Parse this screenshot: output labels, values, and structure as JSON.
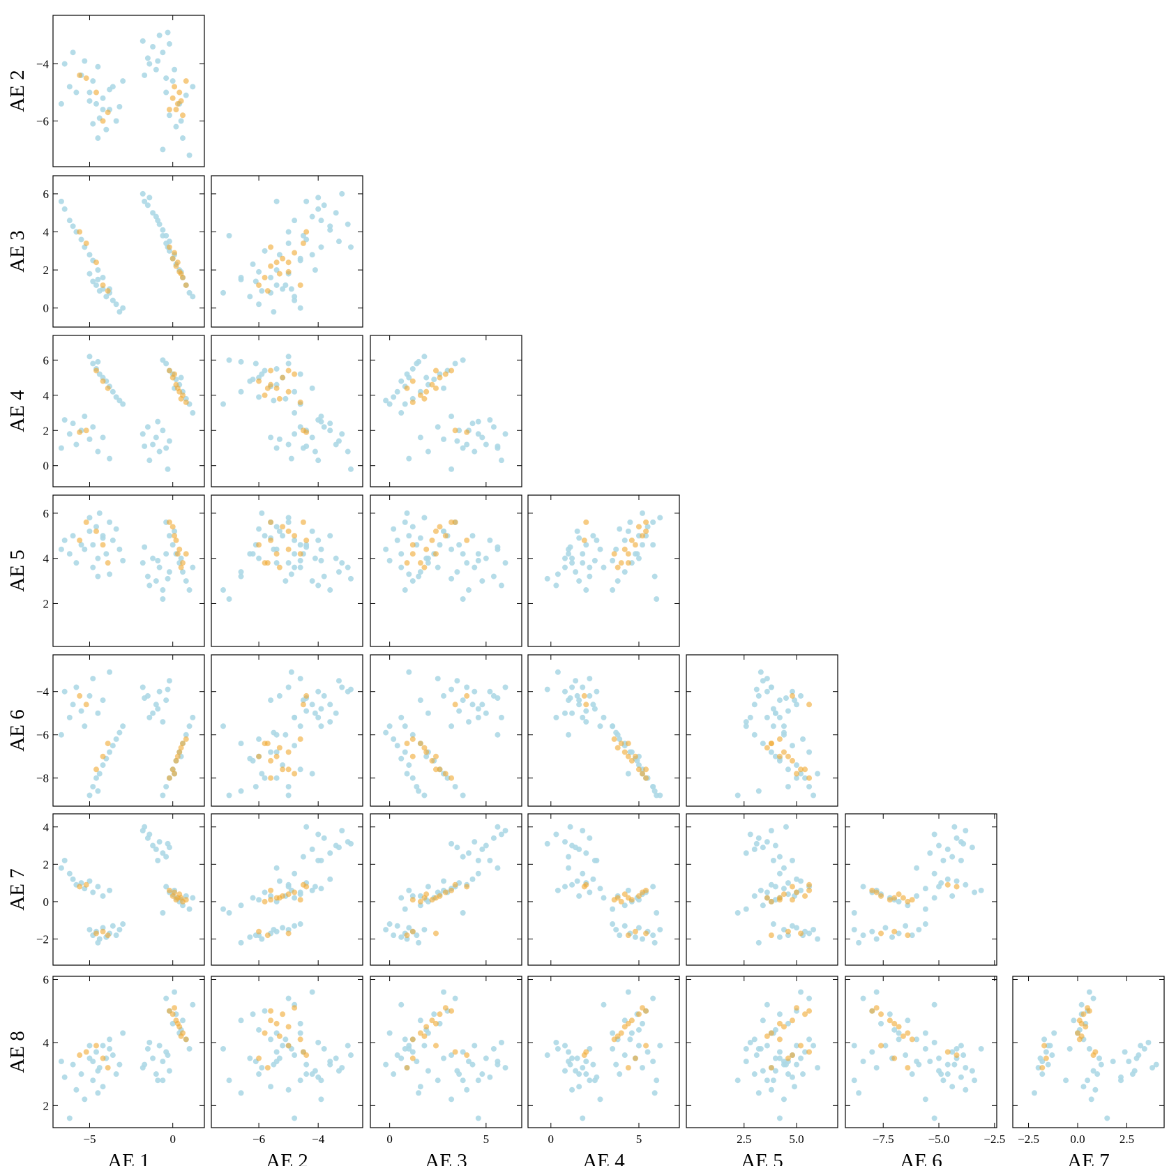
{
  "chart_data": {
    "type": "scatter",
    "variables": [
      {
        "label": "AE 1",
        "xlim": [
          -7.2,
          1.9
        ],
        "xticks": [
          {
            "value": -5,
            "label": "−5"
          },
          0
        ]
      },
      {
        "label": "AE 2",
        "xlim": [
          -7.6,
          -2.5
        ],
        "xticks": [
          {
            "value": -6,
            "label": "−6"
          },
          {
            "value": -4,
            "label": "−4"
          }
        ],
        "ylim": [
          -7.6,
          -2.3
        ],
        "yticks": [
          {
            "value": -6,
            "label": "−6"
          },
          {
            "value": -4,
            "label": "−4"
          }
        ]
      },
      {
        "label": "AE 3",
        "xlim": [
          -1.0,
          6.85
        ],
        "xticks": [
          0,
          5
        ],
        "ylim": [
          -1.0,
          6.95
        ],
        "yticks": [
          0,
          2,
          4,
          6
        ]
      },
      {
        "label": "AE 4",
        "xlim": [
          -1.3,
          7.3
        ],
        "xticks": [
          0,
          5
        ],
        "ylim": [
          -1.2,
          7.4
        ],
        "yticks": [
          0,
          2,
          4,
          6
        ]
      },
      {
        "label": "AE 5",
        "xlim": [
          -0.25,
          6.96
        ],
        "xticks": [
          2.5,
          {
            "value": 5,
            "label": "5.0"
          }
        ],
        "ylim": [
          0.1,
          6.8
        ],
        "yticks": [
          2,
          4,
          6
        ]
      },
      {
        "label": "AE 6",
        "xlim": [
          -9.2,
          -2.4
        ],
        "xticks": [
          {
            "value": -7.5,
            "label": "−7.5"
          },
          {
            "value": -5,
            "label": "−5.0"
          },
          {
            "value": -2.5,
            "label": "−2.5"
          }
        ],
        "ylim": [
          -9.3,
          -2.3
        ],
        "yticks": [
          {
            "value": -8,
            "label": "−8"
          },
          {
            "value": -6,
            "label": "−6"
          },
          {
            "value": -4,
            "label": "−4"
          }
        ]
      },
      {
        "label": "AE 7",
        "xlim": [
          -3.3,
          4.4
        ],
        "xticks": [
          {
            "value": -2.5,
            "label": "−2.5"
          },
          {
            "value": 0,
            "label": "0.0"
          },
          2.5
        ],
        "ylim": [
          -3.4,
          4.7
        ],
        "yticks": [
          {
            "value": -2,
            "label": "−2"
          },
          0,
          2,
          4
        ]
      },
      {
        "label": "AE 8",
        "ylim": [
          1.3,
          6.1
        ],
        "yticks": [
          2,
          4,
          6
        ]
      }
    ],
    "series": [
      {
        "color": "#add8e6",
        "alpha": 0.9,
        "points": [
          [
            -6.5,
            -4.0,
            5.2,
            2.6,
            4.8,
            -4.0,
            2.2,
            2.9
          ],
          [
            -6.2,
            -4.8,
            4.6,
            1.8,
            4.2,
            -5.2,
            1.5,
            1.6
          ],
          [
            -6.0,
            -3.6,
            4.3,
            2.4,
            5.0,
            -4.6,
            1.2,
            3.3
          ],
          [
            -5.8,
            -5.0,
            4.0,
            1.2,
            3.8,
            -3.8,
            0.9,
            2.5
          ],
          [
            -5.5,
            -4.4,
            3.6,
            2.0,
            4.6,
            -4.9,
            1.0,
            3.0
          ],
          [
            -5.3,
            -3.9,
            3.2,
            2.8,
            4.4,
            -5.6,
            0.7,
            2.2
          ],
          [
            -5.0,
            -5.3,
            2.8,
            1.5,
            5.2,
            -4.2,
            1.1,
            3.5
          ],
          [
            -4.8,
            -4.6,
            2.5,
            2.2,
            3.6,
            -3.4,
            0.5,
            2.8
          ],
          [
            -4.5,
            -4.1,
            2.0,
            0.8,
            4.0,
            -5.0,
            0.8,
            3.1
          ],
          [
            -4.2,
            -5.6,
            1.6,
            1.6,
            4.9,
            -4.4,
            0.3,
            2.6
          ],
          [
            -3.8,
            -4.9,
            1.0,
            0.4,
            3.3,
            -3.1,
            0.6,
            3.8
          ],
          [
            -6.7,
            -5.4,
            5.6,
            1.0,
            4.4,
            -6.0,
            1.8,
            3.4
          ],
          [
            -5.0,
            -5.0,
            1.8,
            6.2,
            5.8,
            -8.8,
            -1.5,
            3.9
          ],
          [
            -4.8,
            -6.1,
            1.4,
            5.8,
            4.6,
            -8.4,
            -1.8,
            3.4
          ],
          [
            -4.6,
            -5.4,
            1.2,
            5.5,
            5.4,
            -8.0,
            -1.6,
            3.7
          ],
          [
            -4.4,
            -5.9,
            0.9,
            5.2,
            6.0,
            -7.8,
            -2.0,
            3.2
          ],
          [
            -4.2,
            -5.2,
            1.0,
            5.0,
            5.0,
            -7.4,
            -1.4,
            3.9
          ],
          [
            -4.0,
            -6.3,
            0.6,
            4.8,
            4.2,
            -7.1,
            -1.9,
            3.5
          ],
          [
            -3.8,
            -5.6,
            0.8,
            4.5,
            5.6,
            -6.8,
            -1.7,
            4.1
          ],
          [
            -3.6,
            -4.8,
            0.4,
            4.2,
            4.8,
            -6.5,
            -1.3,
            3.6
          ],
          [
            -3.4,
            -6.0,
            0.2,
            3.9,
            5.3,
            -6.2,
            -1.8,
            3.0
          ],
          [
            -3.2,
            -5.5,
            -0.2,
            3.7,
            4.4,
            -5.9,
            -1.5,
            3.3
          ],
          [
            -4.5,
            -6.6,
            1.5,
            5.9,
            3.2,
            -8.6,
            -2.2,
            2.4
          ],
          [
            -3.0,
            -4.6,
            0.0,
            3.5,
            3.9,
            -5.6,
            -1.2,
            4.3
          ],
          [
            -1.8,
            -3.2,
            6.0,
            1.8,
            3.8,
            -3.8,
            3.8,
            3.2
          ],
          [
            -1.5,
            -3.8,
            5.4,
            2.2,
            3.2,
            -4.2,
            3.4,
            3.8
          ],
          [
            -1.2,
            -3.4,
            5.0,
            1.2,
            4.0,
            -5.0,
            3.0,
            3.5
          ],
          [
            -1.0,
            -4.2,
            4.8,
            1.6,
            3.0,
            -4.6,
            2.8,
            3.0
          ],
          [
            -0.8,
            -3.0,
            4.4,
            0.8,
            3.6,
            -4.0,
            3.2,
            3.9
          ],
          [
            -0.6,
            -3.6,
            4.1,
            2.0,
            2.6,
            -5.4,
            2.6,
            3.4
          ],
          [
            -0.4,
            -4.5,
            3.8,
            1.0,
            4.2,
            -4.4,
            2.4,
            3.7
          ],
          [
            -0.2,
            -3.3,
            3.5,
            1.4,
            3.4,
            -3.5,
            2.9,
            3.1
          ],
          [
            -1.4,
            -4.0,
            5.8,
            0.3,
            2.8,
            -5.2,
            3.6,
            4.0
          ],
          [
            -0.9,
            -3.9,
            4.6,
            2.5,
            3.9,
            -4.8,
            2.2,
            2.8
          ],
          [
            -0.3,
            -2.9,
            3.2,
            -0.2,
            3.1,
            -3.9,
            3.1,
            3.6
          ],
          [
            -1.7,
            -4.4,
            5.6,
            1.1,
            4.5,
            -4.3,
            4.0,
            3.3
          ],
          [
            -0.4,
            -5.0,
            3.4,
            5.8,
            5.6,
            -8.4,
            0.8,
            5.4
          ],
          [
            -0.2,
            -5.8,
            3.0,
            5.4,
            5.0,
            -8.0,
            0.5,
            5.0
          ],
          [
            0.0,
            -4.6,
            2.6,
            5.2,
            4.6,
            -7.6,
            0.4,
            4.6
          ],
          [
            0.2,
            -6.2,
            2.3,
            4.9,
            4.2,
            -7.2,
            0.2,
            4.9
          ],
          [
            0.4,
            -5.4,
            2.0,
            4.6,
            3.8,
            -6.8,
            0.0,
            4.3
          ],
          [
            0.6,
            -6.6,
            1.6,
            4.2,
            3.4,
            -6.4,
            -0.2,
            4.7
          ],
          [
            0.8,
            -5.1,
            1.2,
            3.8,
            3.0,
            -6.0,
            0.3,
            4.1
          ],
          [
            1.0,
            -7.2,
            0.8,
            3.5,
            2.6,
            -5.6,
            -0.4,
            3.8
          ],
          [
            0.1,
            -4.2,
            2.8,
            4.4,
            5.2,
            -7.8,
            0.6,
            5.6
          ],
          [
            0.5,
            -6.0,
            1.9,
            5.0,
            4.0,
            -7.0,
            0.1,
            4.4
          ],
          [
            -0.6,
            -7.0,
            3.8,
            6.0,
            2.2,
            -8.8,
            -0.6,
            2.8
          ],
          [
            1.2,
            -4.8,
            0.6,
            3.0,
            3.6,
            -5.2,
            0.2,
            5.2
          ]
        ]
      },
      {
        "color": "#f0a830",
        "alpha": 0.6,
        "points": [
          [
            0.0,
            -5.2,
            2.6,
            5.0,
            5.4,
            -7.6,
            0.3,
            4.9
          ],
          [
            0.2,
            -5.6,
            2.2,
            4.6,
            4.8,
            -7.2,
            0.1,
            4.7
          ],
          [
            0.4,
            -5.0,
            1.9,
            4.2,
            4.4,
            -6.8,
            0.4,
            4.5
          ],
          [
            0.3,
            -5.4,
            2.4,
            4.4,
            4.2,
            -7.0,
            0.2,
            4.6
          ],
          [
            0.6,
            -5.8,
            1.6,
            4.0,
            3.8,
            -6.4,
            0.0,
            4.3
          ],
          [
            0.1,
            -4.8,
            2.9,
            5.2,
            5.0,
            -7.8,
            0.5,
            5.1
          ],
          [
            0.5,
            -5.3,
            1.8,
            3.8,
            3.6,
            -6.6,
            0.2,
            4.2
          ],
          [
            -0.2,
            -5.6,
            3.2,
            5.4,
            5.6,
            -8.0,
            0.6,
            5.0
          ],
          [
            -5.2,
            -4.5,
            3.4,
            2.0,
            5.6,
            -4.6,
            0.9,
            3.7
          ],
          [
            -4.6,
            -5.0,
            2.4,
            5.4,
            5.2,
            -7.6,
            -1.7,
            3.9
          ],
          [
            -4.2,
            -6.0,
            1.2,
            4.8,
            4.6,
            -7.0,
            -1.6,
            3.5
          ],
          [
            -5.6,
            -4.4,
            4.0,
            1.9,
            4.8,
            -4.2,
            0.8,
            3.6
          ],
          [
            0.8,
            -4.6,
            1.2,
            3.6,
            4.2,
            -6.2,
            0.1,
            4.1
          ],
          [
            -3.9,
            -5.7,
            0.9,
            4.4,
            3.8,
            -6.4,
            -1.8,
            3.2
          ]
        ]
      }
    ]
  }
}
